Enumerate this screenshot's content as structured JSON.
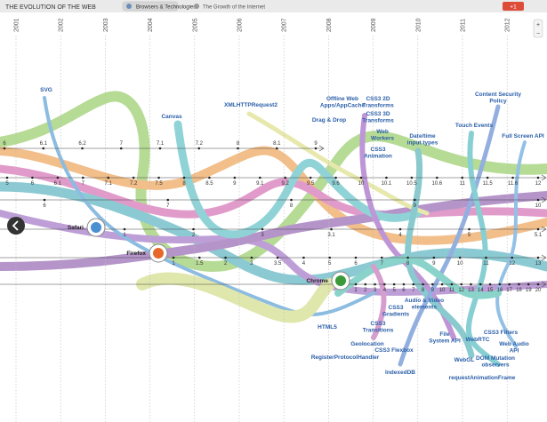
{
  "header": {
    "title": "THE EVOLUTION OF THE WEB",
    "tabs": [
      "Browsers & Technologies",
      "The Growth of the Internet"
    ],
    "gplus": "+1"
  },
  "years": [
    "2001",
    "2002",
    "2003",
    "2004",
    "2005",
    "2006",
    "2007",
    "2008",
    "2009",
    "2010",
    "2011",
    "2012"
  ],
  "browsers": [
    "Safari",
    "Firefox",
    "Chrome"
  ],
  "version_rows": [
    {
      "versions": [
        "6",
        "6.1",
        "6.2",
        "7",
        "7.1",
        "7.2",
        "8",
        "8.1",
        "9"
      ]
    },
    {
      "versions": [
        "5",
        "6",
        "6.1",
        "7",
        "7.1",
        "7.2",
        "7.5",
        "8",
        "8.5",
        "9",
        "9.1",
        "9.2",
        "9.5",
        "9.6",
        "10",
        "10.1",
        "10.5",
        "10.6",
        "11",
        "11.5",
        "11.6",
        "12"
      ]
    },
    {
      "versions": [
        "6",
        "7",
        "8",
        "9",
        "10"
      ]
    },
    {
      "versions": [
        "1",
        "2",
        "3",
        "3.1",
        "4",
        "5",
        "5.1"
      ]
    },
    {
      "versions": [
        "1",
        "1.5",
        "2",
        "3",
        "3.5",
        "4",
        "5",
        "6",
        "7",
        "8",
        "9",
        "10",
        "11",
        "12",
        "13"
      ]
    },
    {
      "versions": [
        "1",
        "2",
        "3",
        "4",
        "5",
        "6",
        "7",
        "8",
        "9",
        "10",
        "11",
        "12",
        "13",
        "14",
        "15",
        "16",
        "17",
        "18",
        "19",
        "20"
      ]
    }
  ],
  "technologies": [
    {
      "lines": [
        "SVG"
      ]
    },
    {
      "lines": [
        "Canvas"
      ]
    },
    {
      "lines": [
        "XMLHTTPRequest2"
      ]
    },
    {
      "lines": [
        "Drag & Drop"
      ]
    },
    {
      "lines": [
        "Offline Web",
        "Apps/AppCache"
      ]
    },
    {
      "lines": [
        "CSS3 2D",
        "Transforms"
      ]
    },
    {
      "lines": [
        "CSS3 3D",
        "Transforms"
      ]
    },
    {
      "lines": [
        "Web",
        "Workers"
      ]
    },
    {
      "lines": [
        "CSS3",
        "Animation"
      ]
    },
    {
      "lines": [
        "Date/time",
        "input types"
      ]
    },
    {
      "lines": [
        "Content Security",
        "Policy"
      ]
    },
    {
      "lines": [
        "Touch Events"
      ]
    },
    {
      "lines": [
        "Full Screen API"
      ]
    },
    {
      "lines": [
        "HTML5"
      ]
    },
    {
      "lines": [
        "RegisterProtocolHandler"
      ]
    },
    {
      "lines": [
        "Geolocation"
      ]
    },
    {
      "lines": [
        "CSS3 Flexbox"
      ]
    },
    {
      "lines": [
        "CSS3",
        "Transitions"
      ]
    },
    {
      "lines": [
        "CSS3",
        "Gradients"
      ]
    },
    {
      "lines": [
        "Audio & Video",
        "elements"
      ]
    },
    {
      "lines": [
        "IndexedDB"
      ]
    },
    {
      "lines": [
        "File",
        "System API"
      ]
    },
    {
      "lines": [
        "WebGL"
      ]
    },
    {
      "lines": [
        "WebRTC"
      ]
    },
    {
      "lines": [
        "DOM Mutation",
        "observers"
      ]
    },
    {
      "lines": [
        "CSS3 Filters"
      ]
    },
    {
      "lines": [
        "Web Audio",
        "API"
      ]
    },
    {
      "lines": [
        "requestAnimationFrame"
      ]
    }
  ]
}
